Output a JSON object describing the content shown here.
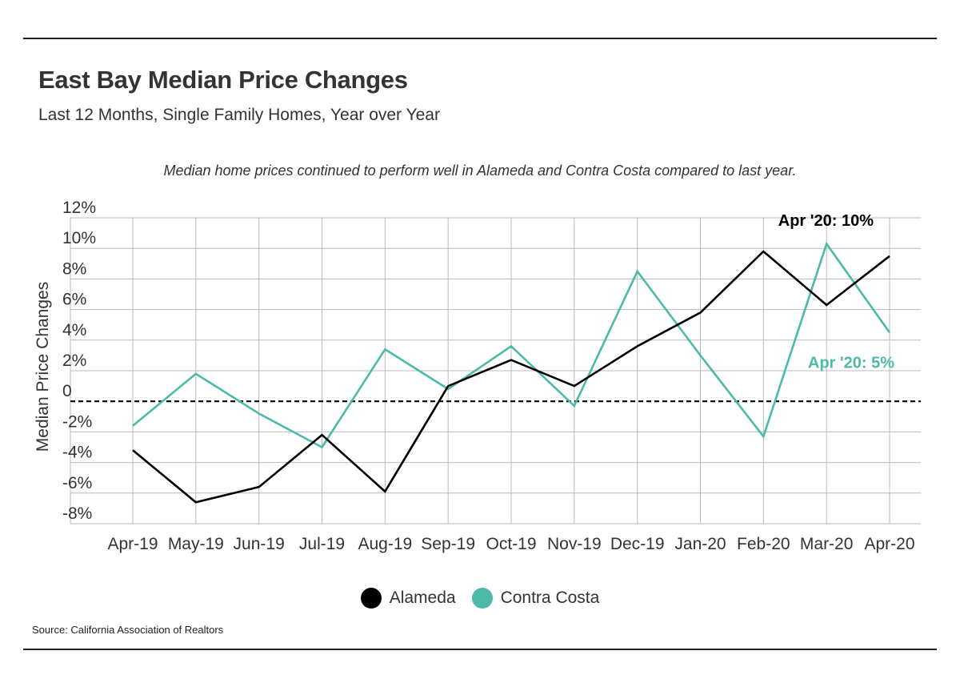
{
  "title": "East Bay Median Price Changes",
  "subtitle": "Last 12 Months, Single Family Homes, Year over Year",
  "note": "Median home prices continued to perform well in Alameda and Contra Costa compared to last year.",
  "source": "Source:  California Association of Realtors",
  "colors": {
    "alameda": "#000000",
    "contra_costa": "#4dbaa8",
    "grid": "#bbbbbb"
  },
  "chart_data": {
    "type": "line",
    "ylabel": "Median Price Changes",
    "xlabel": "",
    "ylim": [
      -8,
      12
    ],
    "y_ticks": [
      12,
      10,
      8,
      6,
      4,
      2,
      0,
      -2,
      -4,
      -6,
      -8
    ],
    "y_tick_labels": [
      "12%",
      "10%",
      "8%",
      "6%",
      "4%",
      "2%",
      "0",
      "-2%",
      "-4%",
      "-6%",
      "-8%"
    ],
    "zero_line": "dashed",
    "grid": true,
    "categories": [
      "Apr-19",
      "May-19",
      "Jun-19",
      "Jul-19",
      "Aug-19",
      "Sep-19",
      "Oct-19",
      "Nov-19",
      "Dec-19",
      "Jan-20",
      "Feb-20",
      "Mar-20",
      "Apr-20"
    ],
    "series": [
      {
        "name": "Alameda",
        "color": "#000000",
        "values": [
          -3.2,
          -6.6,
          -5.6,
          -2.2,
          -5.9,
          1.0,
          2.7,
          1.0,
          3.6,
          5.8,
          9.8,
          6.3,
          9.5
        ]
      },
      {
        "name": "Contra Costa",
        "color": "#4dbaa8",
        "values": [
          -1.6,
          1.8,
          -0.8,
          -3.0,
          3.4,
          0.8,
          3.6,
          -0.3,
          8.5,
          3.0,
          -2.3,
          10.3,
          4.5
        ]
      }
    ],
    "annotations": [
      {
        "text": "Apr '20: 10%",
        "series": "Alameda"
      },
      {
        "text": "Apr '20: 5%",
        "series": "Contra Costa"
      }
    ],
    "legend": {
      "placement": "bottom-center",
      "entries": [
        "Alameda",
        "Contra Costa"
      ]
    }
  }
}
